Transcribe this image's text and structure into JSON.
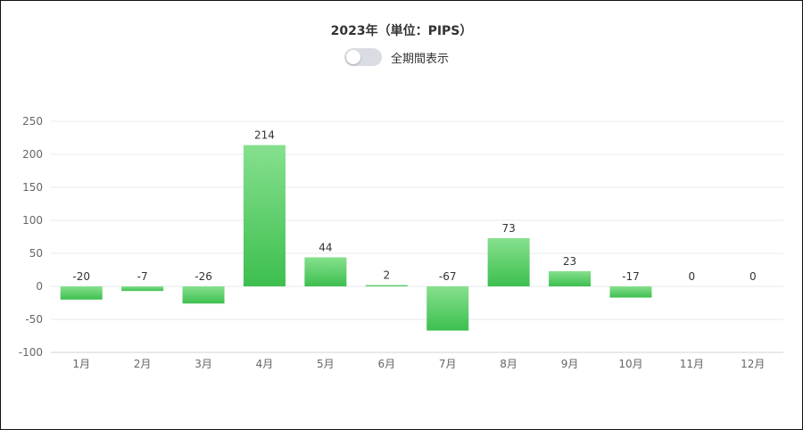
{
  "header": {
    "title": "2023年（単位：PIPS）",
    "toggle_label": "全期間表示",
    "toggle_on": false
  },
  "colors": {
    "bar_top": "#86e08e",
    "bar_bottom": "#3dbf4f",
    "grid": "#e6e8ec",
    "axis": "#cfd3da"
  },
  "chart_data": {
    "type": "bar",
    "title": "2023年（単位：PIPS）",
    "categories": [
      "1月",
      "2月",
      "3月",
      "4月",
      "5月",
      "6月",
      "7月",
      "8月",
      "9月",
      "10月",
      "11月",
      "12月"
    ],
    "values": [
      -20,
      -7,
      -26,
      214,
      44,
      2,
      -67,
      73,
      23,
      -17,
      0,
      0
    ],
    "data_labels": [
      "-20",
      "-7",
      "-26",
      "214",
      "44",
      "2",
      "-67",
      "73",
      "23",
      "-17",
      "0",
      "0"
    ],
    "ylim": [
      -100,
      250
    ],
    "yticks": [
      -100,
      -50,
      0,
      50,
      100,
      150,
      200,
      250
    ],
    "grid": true,
    "legend": "none"
  }
}
